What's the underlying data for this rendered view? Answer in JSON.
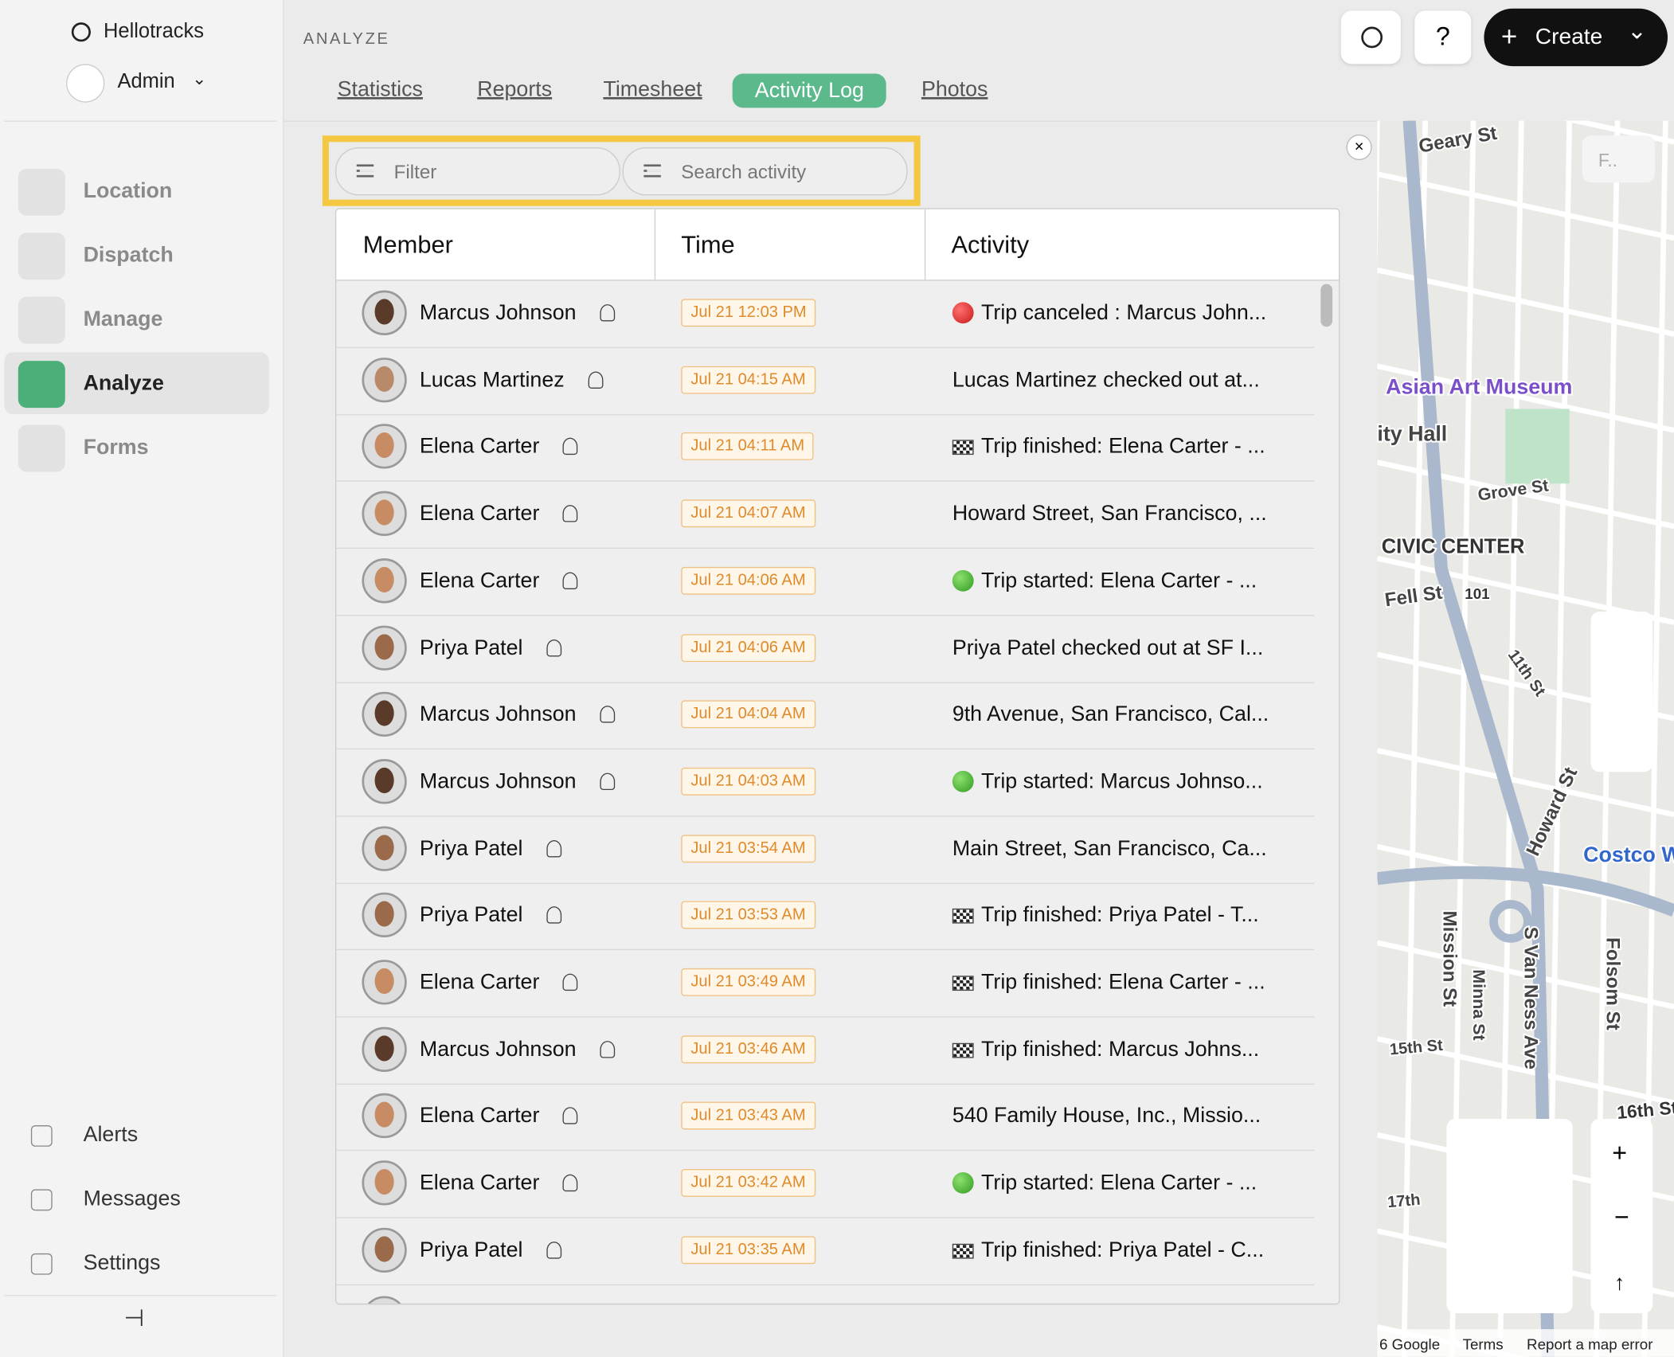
{
  "sidebar": {
    "brand": "Hellotracks",
    "user": "Admin",
    "nav": [
      "Location",
      "Dispatch",
      "Manage",
      "Analyze",
      "Forms"
    ],
    "active_nav": "Analyze",
    "bottom": [
      "Alerts",
      "Messages",
      "Settings"
    ]
  },
  "header": {
    "section": "ANALYZE",
    "tabs": [
      "Statistics",
      "Reports",
      "Timesheet",
      "Activity Log",
      "Photos"
    ],
    "active_tab": "Activity Log",
    "help": "?",
    "create": "Create"
  },
  "filters": {
    "filter": "Filter",
    "search": "Search activity"
  },
  "table": {
    "columns": [
      "Member",
      "Time",
      "Activity"
    ],
    "rows": [
      {
        "member": "Marcus Johnson",
        "time": "Jul 21 12:03 PM",
        "status": "canceled",
        "activity": "Trip canceled : Marcus John..."
      },
      {
        "member": "Lucas Martinez",
        "time": "Jul 21 04:15 AM",
        "status": null,
        "activity": "Lucas Martinez checked out at..."
      },
      {
        "member": "Elena Carter",
        "time": "Jul 21 04:11 AM",
        "status": "finished",
        "activity": "Trip finished: Elena Carter - ..."
      },
      {
        "member": "Elena Carter",
        "time": "Jul 21 04:07 AM",
        "status": null,
        "activity": "Howard Street, San Francisco, ..."
      },
      {
        "member": "Elena Carter",
        "time": "Jul 21 04:06 AM",
        "status": "started",
        "activity": "Trip started: Elena Carter - ..."
      },
      {
        "member": "Priya Patel",
        "time": "Jul 21 04:06 AM",
        "status": null,
        "activity": "Priya Patel checked out at SF I..."
      },
      {
        "member": "Marcus Johnson",
        "time": "Jul 21 04:04 AM",
        "status": null,
        "activity": "9th Avenue, San Francisco, Cal..."
      },
      {
        "member": "Marcus Johnson",
        "time": "Jul 21 04:03 AM",
        "status": "started",
        "activity": "Trip started: Marcus Johnso..."
      },
      {
        "member": "Priya Patel",
        "time": "Jul 21 03:54 AM",
        "status": null,
        "activity": "Main Street, San Francisco, Ca..."
      },
      {
        "member": "Priya Patel",
        "time": "Jul 21 03:53 AM",
        "status": "finished",
        "activity": "Trip finished: Priya Patel - T..."
      },
      {
        "member": "Elena Carter",
        "time": "Jul 21 03:49 AM",
        "status": "finished",
        "activity": "Trip finished: Elena Carter - ..."
      },
      {
        "member": "Marcus Johnson",
        "time": "Jul 21 03:46 AM",
        "status": "finished",
        "activity": "Trip finished: Marcus Johns..."
      },
      {
        "member": "Elena Carter",
        "time": "Jul 21 03:43 AM",
        "status": null,
        "activity": "540 Family House, Inc., Missio..."
      },
      {
        "member": "Elena Carter",
        "time": "Jul 21 03:42 AM",
        "status": "started",
        "activity": "Trip started: Elena Carter - ..."
      },
      {
        "member": "Priya Patel",
        "time": "Jul 21 03:35 AM",
        "status": "finished",
        "activity": "Trip finished: Priya Patel - C..."
      }
    ]
  },
  "map": {
    "search": "F..",
    "labels": [
      "Geary St",
      "Asian Art Museum",
      "ity Hall",
      "Grove St",
      "CIVIC CENTER",
      "Fell St",
      "101",
      "11th St",
      "Howard St",
      "Costco W",
      "Mission St",
      "Minna St",
      "S Van Ness Ave",
      "Folsom St",
      "15th St",
      "16th St",
      "17th"
    ],
    "footer": [
      "6 Google",
      "Terms",
      "Report a map error"
    ]
  }
}
